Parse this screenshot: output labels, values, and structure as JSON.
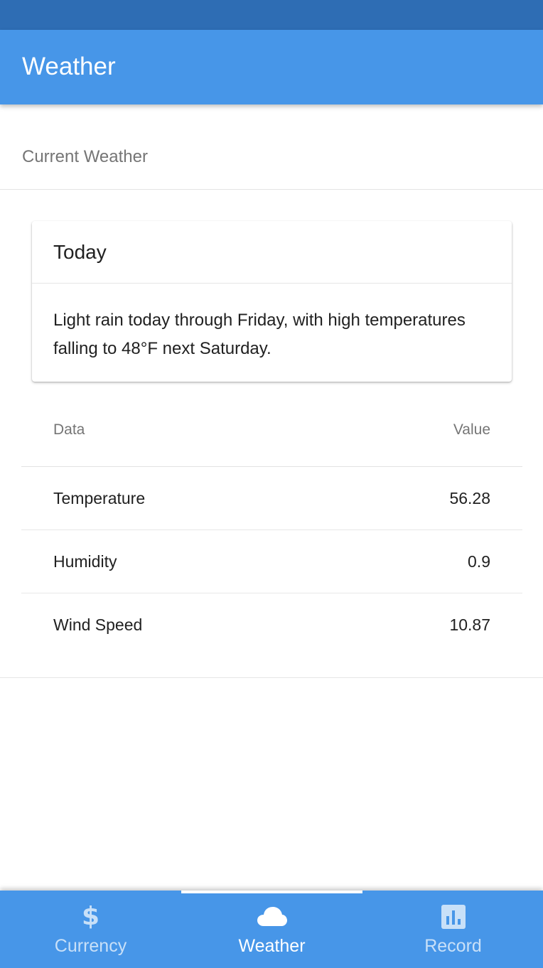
{
  "app_bar": {
    "title": "Weather"
  },
  "section": {
    "title": "Current Weather"
  },
  "card": {
    "title": "Today",
    "summary": "Light rain today through Friday, with high temperatures falling to 48°F next Saturday."
  },
  "table": {
    "headers": {
      "data": "Data",
      "value": "Value"
    },
    "rows": [
      {
        "label": "Temperature",
        "value": "56.28"
      },
      {
        "label": "Humidity",
        "value": "0.9"
      },
      {
        "label": "Wind Speed",
        "value": "10.87"
      }
    ]
  },
  "tabs": [
    {
      "label": "Currency",
      "icon": "dollar-icon",
      "active": false
    },
    {
      "label": "Weather",
      "icon": "cloud-icon",
      "active": true
    },
    {
      "label": "Record",
      "icon": "bar-chart-icon",
      "active": false
    }
  ],
  "colors": {
    "status_bar": "#2e6db4",
    "primary": "#4796e8",
    "inactive_tab_text": "rgba(255,255,255,0.7)"
  }
}
